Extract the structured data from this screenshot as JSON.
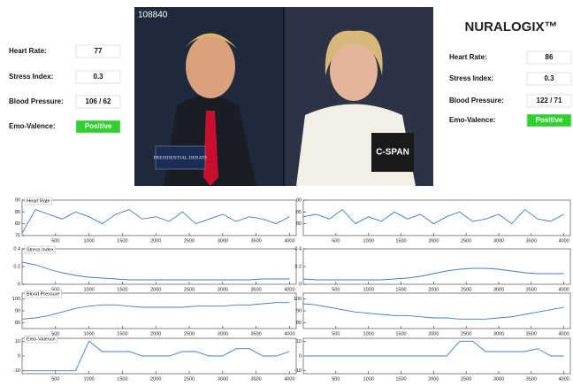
{
  "left_panel": {
    "rows": [
      {
        "label": "Heart Rate:",
        "value": "77"
      },
      {
        "label": "Stress Index:",
        "value": "0.3"
      },
      {
        "label": "Blood Pressure:",
        "value": "106 / 62"
      },
      {
        "label": "Emo-Valence:",
        "value": "Positive"
      }
    ]
  },
  "right_panel": {
    "rows": [
      {
        "label": "Heart Rate:",
        "value": "86"
      },
      {
        "label": "Stress Index:",
        "value": "0.3"
      },
      {
        "label": "Blood Pressure:",
        "value": "122 / 71"
      },
      {
        "label": "Emo-Valence:",
        "value": "Positive"
      }
    ]
  },
  "video": {
    "counter": "108840",
    "left_logo": "PRESIDENTIAL DEBATE",
    "right_logo": "C-SPAN"
  },
  "logo": "NURALOGIX™",
  "chart_data": [
    {
      "type": "line",
      "title": "Heart Rate",
      "color": "#3a7fc1",
      "x": [
        0,
        200,
        400,
        600,
        800,
        1000,
        1200,
        1400,
        1600,
        1800,
        2000,
        2200,
        2400,
        2600,
        2800,
        3000,
        3200,
        3400,
        3600,
        3800,
        4000
      ],
      "values": [
        76,
        86,
        84,
        82,
        85,
        83,
        80,
        84,
        86,
        82,
        83,
        81,
        85,
        80,
        82,
        84,
        81,
        83,
        82,
        80,
        83
      ],
      "xlim": [
        0,
        4100
      ],
      "xticks": [
        500,
        1000,
        1500,
        2000,
        2500,
        3000,
        3500,
        4000
      ],
      "ylim": [
        75,
        90
      ],
      "yticks": [
        75,
        80,
        85,
        90
      ]
    },
    {
      "type": "line",
      "color": "#3a7fc1",
      "x": [
        0,
        200,
        400,
        600,
        800,
        1000,
        1200,
        1400,
        1600,
        1800,
        2000,
        2200,
        2400,
        2600,
        2800,
        3000,
        3200,
        3400,
        3600,
        3800,
        4000
      ],
      "values": [
        83,
        84,
        82,
        86,
        80,
        83,
        81,
        85,
        82,
        84,
        80,
        83,
        85,
        81,
        82,
        84,
        80,
        86,
        82,
        81,
        84
      ],
      "xlim": [
        0,
        4100
      ],
      "xticks": [
        500,
        1000,
        1500,
        2000,
        2500,
        3000,
        3500,
        4000
      ],
      "ylim": [
        75,
        90
      ],
      "yticks": [
        80,
        85,
        90
      ]
    },
    {
      "type": "line",
      "title": "Stress Index",
      "color": "#3a7fc1",
      "x": [
        0,
        200,
        400,
        600,
        800,
        1000,
        1200,
        1400,
        1600,
        1800,
        2000,
        2200,
        2400,
        2600,
        2800,
        3000,
        3200,
        3400,
        3600,
        3800,
        4000
      ],
      "values": [
        0.25,
        0.22,
        0.17,
        0.13,
        0.1,
        0.08,
        0.07,
        0.06,
        0.05,
        0.05,
        0.05,
        0.05,
        0.05,
        0.05,
        0.05,
        0.05,
        0.05,
        0.05,
        0.06,
        0.06,
        0.06
      ],
      "xlim": [
        0,
        4100
      ],
      "xticks": [
        500,
        1000,
        1500,
        2000,
        2500,
        3000,
        3500,
        4000
      ],
      "ylim": [
        0,
        0.4
      ],
      "yticks": [
        0,
        0.2,
        0.4
      ]
    },
    {
      "type": "line",
      "color": "#3a7fc1",
      "x": [
        0,
        200,
        400,
        600,
        800,
        1000,
        1200,
        1400,
        1600,
        1800,
        2000,
        2200,
        2400,
        2600,
        2800,
        3000,
        3200,
        3400,
        3600,
        3800,
        4000
      ],
      "values": [
        0.06,
        0.05,
        0.05,
        0.05,
        0.05,
        0.05,
        0.05,
        0.06,
        0.07,
        0.09,
        0.12,
        0.15,
        0.17,
        0.18,
        0.18,
        0.17,
        0.15,
        0.13,
        0.12,
        0.12,
        0.12
      ],
      "xlim": [
        0,
        4100
      ],
      "xticks": [
        500,
        1000,
        1500,
        2000,
        2500,
        3000,
        3500,
        4000
      ],
      "ylim": [
        0,
        0.4
      ],
      "yticks": [
        0,
        0.2,
        0.4
      ]
    },
    {
      "type": "line",
      "title": "Blood Pressure",
      "color": "#3a7fc1",
      "x": [
        0,
        200,
        400,
        600,
        800,
        1000,
        1200,
        1400,
        1600,
        1800,
        2000,
        2200,
        2400,
        2600,
        2800,
        3000,
        3200,
        3400,
        3600,
        3800,
        4000
      ],
      "values": [
        83,
        84,
        86,
        89,
        92,
        94,
        95,
        95,
        94,
        93,
        93,
        93,
        93,
        94,
        94,
        94,
        95,
        95,
        96,
        97,
        97
      ],
      "xlim": [
        0,
        4100
      ],
      "xticks": [
        500,
        1000,
        1500,
        2000,
        2500,
        3000,
        3500,
        4000
      ],
      "ylim": [
        75,
        105
      ],
      "yticks": [
        80,
        90,
        100
      ]
    },
    {
      "type": "line",
      "color": "#3a7fc1",
      "x": [
        0,
        200,
        400,
        600,
        800,
        1000,
        1200,
        1400,
        1600,
        1800,
        2000,
        2200,
        2400,
        2600,
        2800,
        3000,
        3200,
        3400,
        3600,
        3800,
        4000
      ],
      "values": [
        96,
        95,
        93,
        91,
        89,
        88,
        87,
        86,
        86,
        85,
        84,
        84,
        83,
        83,
        83,
        84,
        85,
        87,
        89,
        91,
        93
      ],
      "xlim": [
        0,
        4100
      ],
      "xticks": [
        500,
        1000,
        1500,
        2000,
        2500,
        3000,
        3500,
        4000
      ],
      "ylim": [
        75,
        105
      ],
      "yticks": [
        80,
        90,
        100
      ]
    },
    {
      "type": "line",
      "title": "Emo-Valence",
      "color": "#3a7fc1",
      "x": [
        0,
        200,
        400,
        600,
        800,
        1000,
        1200,
        1400,
        1600,
        1800,
        2000,
        2200,
        2400,
        2600,
        2800,
        3000,
        3200,
        3400,
        3600,
        3800,
        4000
      ],
      "values": [
        -10,
        -10,
        -10,
        -10,
        -10,
        10,
        3,
        3,
        3,
        0,
        0,
        0,
        3,
        3,
        0,
        0,
        5,
        5,
        0,
        0,
        3
      ],
      "xlim": [
        0,
        4100
      ],
      "xticks": [
        500,
        1000,
        1500,
        2000,
        2500,
        3000,
        3500,
        4000
      ],
      "ylim": [
        -12,
        12
      ],
      "yticks": [
        -10,
        0,
        10
      ]
    },
    {
      "type": "line",
      "color": "#3a7fc1",
      "x": [
        0,
        200,
        400,
        600,
        800,
        1000,
        1200,
        1400,
        1600,
        1800,
        2000,
        2200,
        2400,
        2600,
        2800,
        3000,
        3200,
        3400,
        3600,
        3800,
        4000
      ],
      "values": [
        0,
        0,
        0,
        0,
        0,
        0,
        0,
        0,
        0,
        0,
        0,
        0,
        10,
        10,
        3,
        3,
        3,
        3,
        5,
        0,
        0
      ],
      "xlim": [
        0,
        4100
      ],
      "xticks": [
        500,
        1000,
        1500,
        2000,
        2500,
        3000,
        3500,
        4000
      ],
      "ylim": [
        -12,
        12
      ],
      "yticks": [
        -10,
        0,
        10
      ]
    }
  ]
}
